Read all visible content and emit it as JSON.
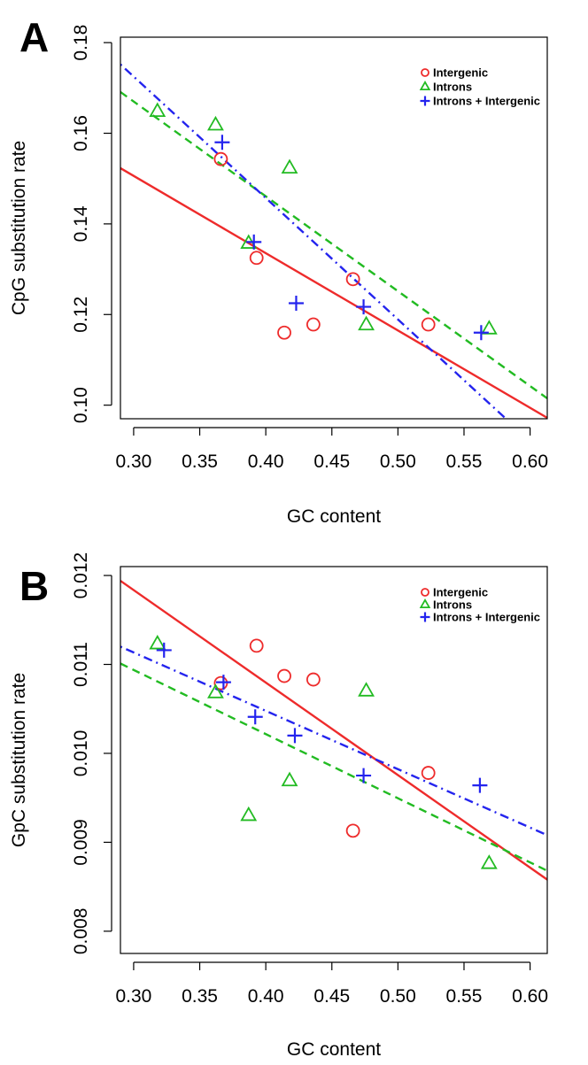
{
  "chart_data": [
    {
      "panel": "A",
      "type": "scatter",
      "xlabel": "GC content",
      "ylabel": "CpG substitution rate",
      "xlim": [
        0.29,
        0.613
      ],
      "ylim": [
        0.097,
        0.1812
      ],
      "xticks": [
        0.3,
        0.35,
        0.4,
        0.45,
        0.5,
        0.55,
        0.6
      ],
      "xtick_labels": [
        "0.30",
        "0.35",
        "0.40",
        "0.45",
        "0.50",
        "0.55",
        "0.60"
      ],
      "yticks": [
        0.1,
        0.12,
        0.14,
        0.16,
        0.18
      ],
      "ytick_labels": [
        "0.10",
        "0.12",
        "0.14",
        "0.16",
        "0.18"
      ],
      "legend_position": "top-right",
      "series": [
        {
          "name": "Intergenic",
          "marker": "circle",
          "color": "#ee2b2b",
          "points": [
            [
              0.366,
              0.1543
            ],
            [
              0.393,
              0.1325
            ],
            [
              0.414,
              0.116
            ],
            [
              0.436,
              0.1178
            ],
            [
              0.466,
              0.1278
            ],
            [
              0.523,
              0.1178
            ]
          ],
          "fit": {
            "style": "solid",
            "x": [
              0.29,
              0.613
            ],
            "y": [
              0.1523,
              0.0972
            ]
          }
        },
        {
          "name": "Introns",
          "marker": "triangle",
          "color": "#22bb22",
          "points": [
            [
              0.318,
              0.1648
            ],
            [
              0.362,
              0.1618
            ],
            [
              0.387,
              0.1357
            ],
            [
              0.418,
              0.1523
            ],
            [
              0.476,
              0.1177
            ],
            [
              0.569,
              0.1168
            ]
          ],
          "fit": {
            "style": "dashed",
            "x": [
              0.29,
              0.613
            ],
            "y": [
              0.1691,
              0.1015
            ]
          }
        },
        {
          "name": "Introns + Intergenic",
          "marker": "plus",
          "color": "#2424ee",
          "points": [
            [
              0.367,
              0.158
            ],
            [
              0.391,
              0.136
            ],
            [
              0.423,
              0.1225
            ],
            [
              0.474,
              0.1217
            ],
            [
              0.563,
              0.116
            ]
          ],
          "fit": {
            "style": "dotdash",
            "x": [
              0.29,
              0.581
            ],
            "y": [
              0.1752,
              0.0972
            ]
          }
        }
      ]
    },
    {
      "panel": "B",
      "type": "scatter",
      "xlabel": "GC content",
      "ylabel": "GpC substitution rate",
      "xlim": [
        0.29,
        0.613
      ],
      "ylim": [
        0.00775,
        0.0121
      ],
      "xticks": [
        0.3,
        0.35,
        0.4,
        0.45,
        0.5,
        0.55,
        0.6
      ],
      "xtick_labels": [
        "0.30",
        "0.35",
        "0.40",
        "0.45",
        "0.50",
        "0.55",
        "0.60"
      ],
      "yticks": [
        0.008,
        0.009,
        0.01,
        0.011,
        0.012
      ],
      "ytick_labels": [
        "0.008",
        "0.009",
        "0.010",
        "0.011",
        "0.012"
      ],
      "legend_position": "top-right",
      "series": [
        {
          "name": "Intergenic",
          "marker": "circle",
          "color": "#ee2b2b",
          "points": [
            [
              0.366,
              0.01079
            ],
            [
              0.393,
              0.01121
            ],
            [
              0.414,
              0.01087
            ],
            [
              0.436,
              0.01083
            ],
            [
              0.466,
              0.00913
            ],
            [
              0.523,
              0.00978
            ]
          ],
          "fit": {
            "style": "solid",
            "x": [
              0.29,
              0.613
            ],
            "y": [
              0.01194,
              0.00858
            ]
          }
        },
        {
          "name": "Introns",
          "marker": "triangle",
          "color": "#22bb22",
          "points": [
            [
              0.318,
              0.01123
            ],
            [
              0.362,
              0.01068
            ],
            [
              0.387,
              0.0093
            ],
            [
              0.418,
              0.00969
            ],
            [
              0.476,
              0.0107
            ],
            [
              0.569,
              0.00876
            ]
          ],
          "fit": {
            "style": "dashed",
            "x": [
              0.29,
              0.613
            ],
            "y": [
              0.01101,
              0.00868
            ]
          }
        },
        {
          "name": "Introns + Intergenic",
          "marker": "plus",
          "color": "#2424ee",
          "points": [
            [
              0.323,
              0.01116
            ],
            [
              0.368,
              0.0108
            ],
            [
              0.392,
              0.01041
            ],
            [
              0.422,
              0.0102
            ],
            [
              0.474,
              0.00975
            ],
            [
              0.562,
              0.00964
            ]
          ],
          "fit": {
            "style": "dotdash",
            "x": [
              0.29,
              0.613
            ],
            "y": [
              0.0112,
              0.00908
            ]
          }
        }
      ]
    }
  ]
}
